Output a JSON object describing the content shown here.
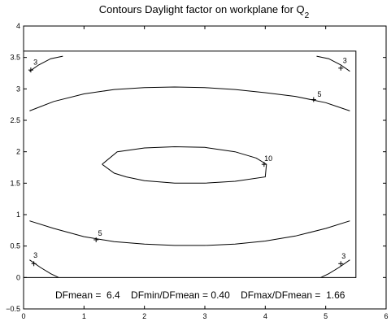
{
  "chart_data": {
    "type": "contour",
    "title": "Contours Daylight factor on workplane  for Q",
    "title_subscript": "2",
    "xlim": [
      0,
      6
    ],
    "ylim": [
      -0.5,
      4
    ],
    "x_ticks": [
      0,
      1,
      2,
      3,
      4,
      5,
      6
    ],
    "x_tick_labels": [
      "0",
      "1",
      "2",
      "3",
      "4",
      "5",
      "6"
    ],
    "y_ticks": [
      -0.5,
      0,
      0.5,
      1,
      1.5,
      2,
      2.5,
      3,
      3.5,
      4
    ],
    "y_tick_labels": [
      "−0.5",
      "0",
      "0.5",
      "1",
      "1.5",
      "2",
      "2.5",
      "3",
      "3.5",
      "4"
    ],
    "room_outline": [
      [
        0,
        0
      ],
      [
        5.5,
        0
      ],
      [
        5.5,
        3.6
      ],
      [
        0,
        3.6
      ]
    ],
    "contours": [
      {
        "level": "3",
        "points": [
          [
            0.1,
            3.28
          ],
          [
            0.25,
            3.38
          ],
          [
            0.45,
            3.48
          ],
          [
            0.65,
            3.52
          ]
        ],
        "label": [
          0.15,
          3.37
        ],
        "marker": [
          0.12,
          3.3
        ]
      },
      {
        "level": "3",
        "points": [
          [
            4.85,
            3.52
          ],
          [
            5.05,
            3.48
          ],
          [
            5.25,
            3.38
          ],
          [
            5.4,
            3.28
          ]
        ],
        "label": [
          5.27,
          3.4
        ],
        "marker": [
          5.25,
          3.33
        ]
      },
      {
        "level": "3",
        "points": [
          [
            0.1,
            0.28
          ],
          [
            0.28,
            0.16
          ],
          [
            0.45,
            0.06
          ],
          [
            0.58,
            0.0
          ]
        ],
        "label": [
          0.15,
          0.3
        ],
        "marker": [
          0.17,
          0.22
        ]
      },
      {
        "level": "3",
        "points": [
          [
            4.92,
            0.0
          ],
          [
            5.05,
            0.06
          ],
          [
            5.22,
            0.16
          ],
          [
            5.4,
            0.28
          ]
        ],
        "label": [
          5.25,
          0.29
        ],
        "marker": [
          5.25,
          0.22
        ]
      },
      {
        "level": "5",
        "points": [
          [
            0.1,
            2.65
          ],
          [
            0.5,
            2.8
          ],
          [
            1.0,
            2.92
          ],
          [
            1.5,
            2.99
          ],
          [
            2.0,
            3.02
          ],
          [
            2.5,
            3.03
          ],
          [
            3.0,
            3.02
          ],
          [
            3.5,
            2.99
          ],
          [
            4.0,
            2.94
          ],
          [
            4.5,
            2.88
          ],
          [
            5.0,
            2.78
          ],
          [
            5.4,
            2.65
          ]
        ],
        "label": [
          4.85,
          2.86
        ],
        "marker": [
          4.8,
          2.83
        ]
      },
      {
        "level": "5",
        "points": [
          [
            0.1,
            0.9
          ],
          [
            0.5,
            0.78
          ],
          [
            1.0,
            0.65
          ],
          [
            1.5,
            0.57
          ],
          [
            2.0,
            0.53
          ],
          [
            2.5,
            0.51
          ],
          [
            3.0,
            0.51
          ],
          [
            3.5,
            0.53
          ],
          [
            4.0,
            0.58
          ],
          [
            4.5,
            0.66
          ],
          [
            5.0,
            0.78
          ],
          [
            5.4,
            0.9
          ]
        ],
        "label": [
          1.22,
          0.65
        ],
        "marker": [
          1.2,
          0.6
        ]
      },
      {
        "level": "10",
        "points": [
          [
            1.3,
            1.8
          ],
          [
            1.55,
            2.0
          ],
          [
            2.0,
            2.06
          ],
          [
            2.5,
            2.08
          ],
          [
            3.0,
            2.07
          ],
          [
            3.5,
            2.0
          ],
          [
            3.85,
            1.9
          ],
          [
            4.02,
            1.8
          ],
          [
            4.0,
            1.6
          ],
          [
            3.5,
            1.53
          ],
          [
            3.0,
            1.5
          ],
          [
            2.5,
            1.5
          ],
          [
            2.0,
            1.54
          ],
          [
            1.7,
            1.6
          ],
          [
            1.5,
            1.66
          ],
          [
            1.3,
            1.8
          ]
        ],
        "label": [
          3.97,
          1.84
        ],
        "marker": [
          3.98,
          1.8
        ]
      }
    ],
    "stats_text": "DFmean =  6.4    DFmin/DFmean = 0.40    DFmax/DFmean =  1.66"
  }
}
